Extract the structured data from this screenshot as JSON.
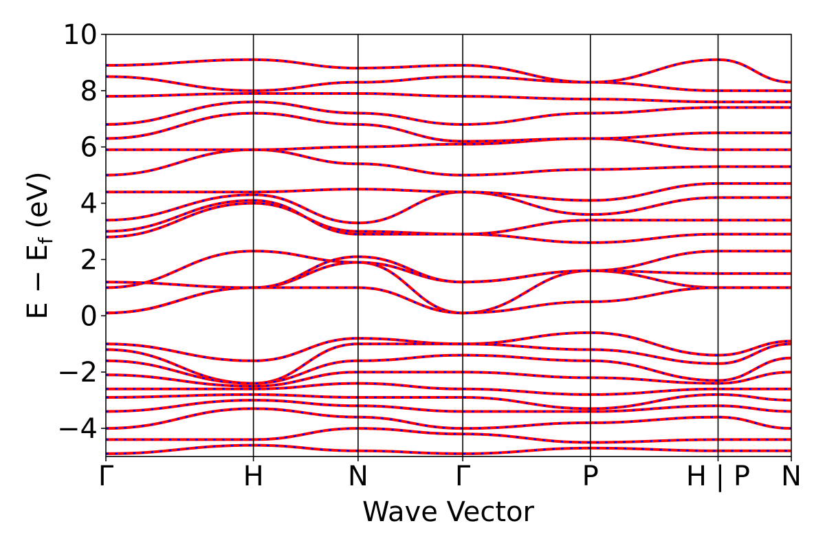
{
  "chart_data": {
    "type": "line",
    "title": "",
    "xlabel": "Wave Vector",
    "ylabel": "E − E",
    "ylabel_sub": "f",
    "ylabel_unit": " (eV)",
    "ylim": [
      -5,
      10
    ],
    "y_ticks": [
      -4,
      -2,
      0,
      2,
      4,
      6,
      8,
      10
    ],
    "y_tick_labels": [
      "−4",
      "−2",
      "0",
      "2",
      "4",
      "6",
      "8",
      "10"
    ],
    "x_range": [
      0,
      6.55
    ],
    "kpoints": [
      {
        "label": "Γ",
        "x": 0
      },
      {
        "label": "H",
        "x": 1.41
      },
      {
        "label": "N",
        "x": 2.41
      },
      {
        "label": "Γ",
        "x": 3.41
      },
      {
        "label": "P",
        "x": 4.63
      },
      {
        "label": "H | P",
        "x": 5.85
      },
      {
        "label": "N",
        "x": 6.55
      }
    ],
    "grid": false,
    "legend": "none",
    "colors": {
      "series_a": "#ff0000",
      "series_b": "#0000ff",
      "axes": "#000000"
    },
    "series": [
      {
        "style": "solid red",
        "values_at_kpoints": [
          [
            0.1,
            1.0,
            1.9,
            0.1,
            1.6,
            1.0,
            1.0
          ],
          [
            0.1,
            1.0,
            1.0,
            0.1,
            0.5,
            1.0,
            1.0
          ],
          [
            1.0,
            2.3,
            1.9,
            1.2,
            1.6,
            2.3,
            2.3
          ],
          [
            1.2,
            1.0,
            2.1,
            1.2,
            1.6,
            1.5,
            1.5
          ],
          [
            2.8,
            4.0,
            3.0,
            2.9,
            2.6,
            2.9,
            2.9
          ],
          [
            3.0,
            4.1,
            2.9,
            2.9,
            3.4,
            3.4,
            3.4
          ],
          [
            3.4,
            4.3,
            3.3,
            4.4,
            3.6,
            4.2,
            4.2
          ],
          [
            4.4,
            4.4,
            4.5,
            4.4,
            4.1,
            4.7,
            4.7
          ],
          [
            5.0,
            5.9,
            5.4,
            5.0,
            5.2,
            5.3,
            5.3
          ],
          [
            5.9,
            5.9,
            6.0,
            6.1,
            6.3,
            5.9,
            5.9
          ],
          [
            6.3,
            7.2,
            6.8,
            6.2,
            6.3,
            6.5,
            6.5
          ],
          [
            6.8,
            7.6,
            7.2,
            6.8,
            7.2,
            7.4,
            7.4
          ],
          [
            7.8,
            7.9,
            7.9,
            7.8,
            7.7,
            7.6,
            7.6
          ],
          [
            8.5,
            8.0,
            8.3,
            8.5,
            8.3,
            8.0,
            8.0
          ],
          [
            8.9,
            9.1,
            8.8,
            8.9,
            8.3,
            9.1,
            8.3
          ],
          [
            -1.0,
            -1.6,
            -0.8,
            -1.0,
            -0.6,
            -1.4,
            -0.9
          ],
          [
            -1.2,
            -2.4,
            -1.0,
            -1.0,
            -1.2,
            -1.7,
            -1.0
          ],
          [
            -1.6,
            -2.4,
            -1.6,
            -1.4,
            -1.6,
            -2.3,
            -1.5
          ],
          [
            -2.1,
            -2.5,
            -2.0,
            -2.0,
            -2.2,
            -2.4,
            -2.0
          ],
          [
            -2.6,
            -2.6,
            -2.4,
            -2.6,
            -2.8,
            -2.6,
            -2.6
          ],
          [
            -2.9,
            -2.8,
            -2.9,
            -2.9,
            -3.3,
            -2.8,
            -3.0
          ],
          [
            -3.4,
            -3.0,
            -3.2,
            -3.4,
            -3.4,
            -3.2,
            -3.4
          ],
          [
            -4.0,
            -3.3,
            -3.6,
            -4.0,
            -3.8,
            -3.6,
            -4.0
          ],
          [
            -4.4,
            -4.4,
            -4.0,
            -4.2,
            -4.5,
            -4.4,
            -4.4
          ],
          [
            -4.9,
            -4.6,
            -4.8,
            -4.9,
            -4.7,
            -4.8,
            -4.8
          ]
        ]
      }
    ]
  }
}
